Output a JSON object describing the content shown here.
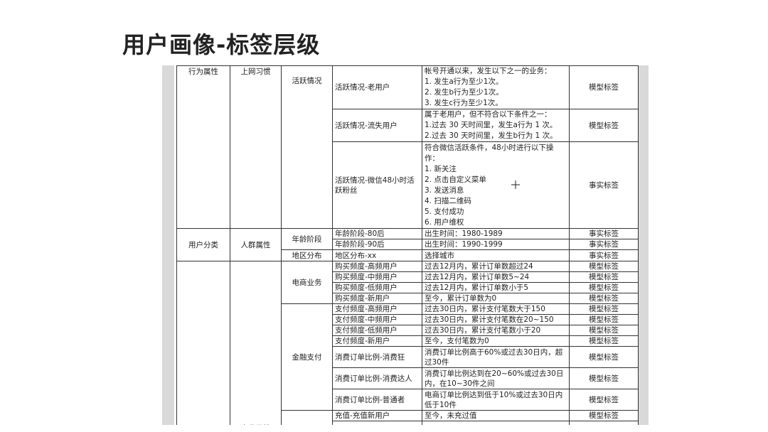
{
  "title": "用户画像-标签层级",
  "table": {
    "rows": [
      [
        "行为属性",
        "上网习惯",
        "活跃情况",
        "活跃情况-老用户",
        [
          "帐号开通以来，发生以下之一的业务：",
          "1. 发生a行为至少1次。",
          "2. 发生b行为至少1次。",
          "3. 发生c行为至少1次。"
        ],
        "模型标签"
      ],
      [
        "活跃情况-流失用户",
        [
          "属于老用户，但不符合以下条件之一：",
          "1.过去 30 天时间里，发生a行为 1 次。",
          "2.过去 30 天时间里，发生b行为 1 次。"
        ],
        "模型标签"
      ],
      [
        "活跃情况-微信48小时活跃粉丝",
        [
          "符合微信活跃条件，48小时进行以下操作：",
          "1. 新关注",
          "2. 点击自定义菜单",
          "3. 发送消息",
          "4. 扫描二维码",
          "5. 支付成功",
          "6. 用户维权"
        ],
        "事实标签"
      ],
      [
        "用户分类",
        "人群属性",
        "年龄阶段",
        "年龄阶段-80后",
        "出生时间：1980-1989",
        "事实标签"
      ],
      [
        "年龄阶段-90后",
        "出生时间：1990-1999",
        "事实标签"
      ],
      [
        "地区分布",
        "地区分布-xx",
        "选择城市",
        "事实标签"
      ],
      [
        "商业属性",
        "电商业务",
        "购买频度-高频用户",
        "过去12月内，累计订单数超过24",
        "模型标签"
      ],
      [
        "购买频度-中频用户",
        "过去12月内，累计订单数5~24",
        "模型标签"
      ],
      [
        "购买频度-低频用户",
        "过去12月内，累计订单数小于5",
        "模型标签"
      ],
      [
        "购买频度-新用户",
        "至今，累计订单数为0",
        "模型标签"
      ],
      [
        "金融支付",
        "支付频度-高频用户",
        "过去30日内，累计支付笔数大于150",
        "模型标签"
      ],
      [
        "支付频度-中频用户",
        "过去30日内，累计支付笔数在20~150",
        "模型标签"
      ],
      [
        "支付频度-低频用户",
        "过去30日内，累计支付笔数小于20",
        "模型标签"
      ],
      [
        "支付频度-新用户",
        "至今，支付笔数为0",
        "模型标签"
      ],
      [
        "消费订单比例-消费狂",
        "消费订单比例高于60%或过去30日内，超过30件",
        "模型标签"
      ],
      [
        "消费订单比例-消费达人",
        "消费订单比例达到在20~60%或过去30日内，在10~30件之间",
        "模型标签"
      ],
      [
        "消费订单比例-普通者",
        "电商订单比例达到低于10%或过去30日内低于10件",
        "模型标签"
      ],
      [
        "充值-充值新用户",
        "至今，未充过值",
        "模型标签"
      ]
    ]
  }
}
